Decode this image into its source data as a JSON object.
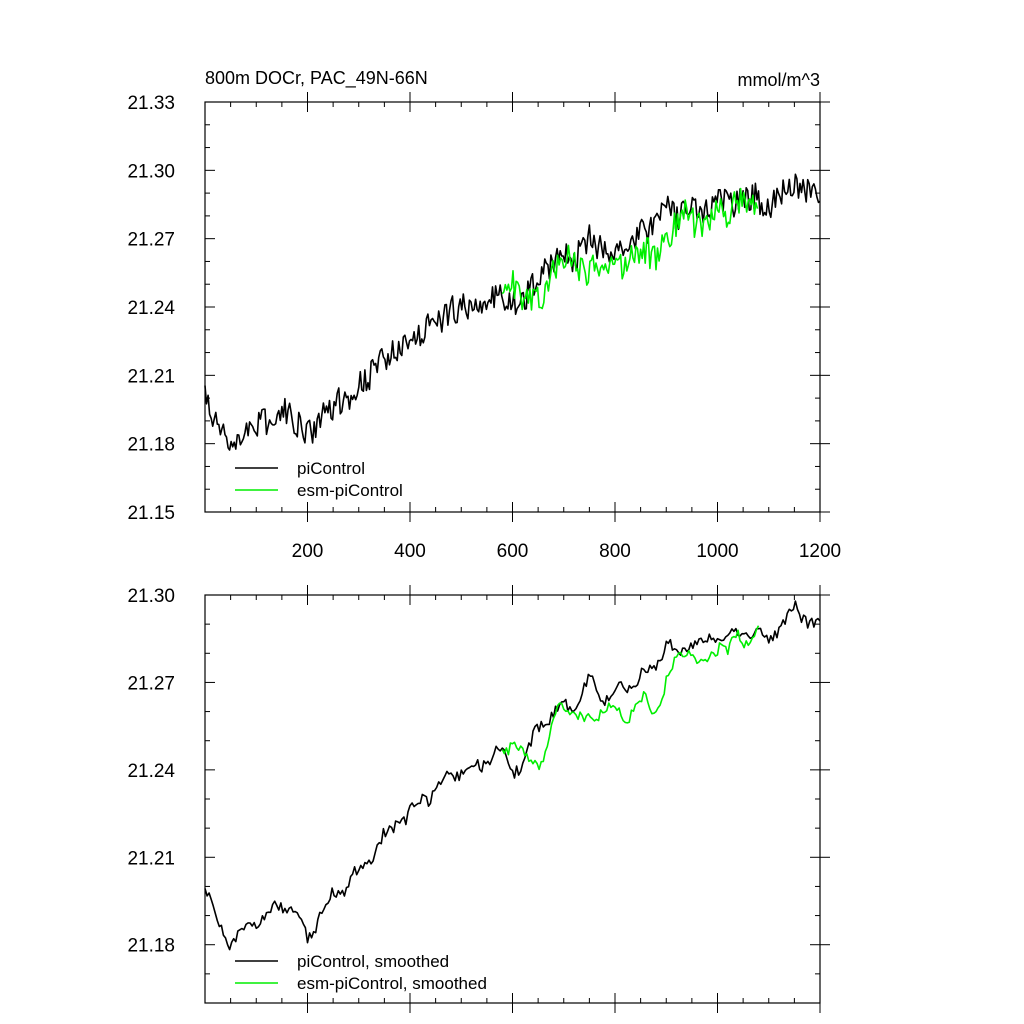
{
  "chart_data": [
    {
      "type": "line",
      "title": "800m DOCr, PAC_49N-66N",
      "units": "mmol/m^3",
      "xlim": [
        0,
        1200
      ],
      "ylim": [
        21.15,
        21.33
      ],
      "xticks": [
        200,
        400,
        600,
        800,
        1000,
        1200
      ],
      "xtick_labels": [
        "200",
        "400",
        "600",
        "800",
        "1000",
        "1200"
      ],
      "yticks": [
        21.15,
        21.18,
        21.21,
        21.24,
        21.27,
        21.3,
        21.33
      ],
      "ytick_labels": [
        "21.15",
        "21.18",
        "21.21",
        "21.24",
        "21.27",
        "21.30",
        "21.33"
      ],
      "legend_position": "bottom-left",
      "series": [
        {
          "name": "piControl",
          "color": "#000000",
          "x": [
            0,
            25,
            50,
            75,
            100,
            125,
            150,
            175,
            200,
            225,
            250,
            275,
            300,
            325,
            350,
            375,
            400,
            425,
            450,
            475,
            500,
            525,
            550,
            575,
            600,
            625,
            650,
            675,
            700,
            725,
            750,
            775,
            800,
            825,
            850,
            875,
            900,
            925,
            950,
            975,
            1000,
            1025,
            1050,
            1075,
            1100,
            1125,
            1150,
            1175,
            1200
          ],
          "values": [
            21.2,
            21.188,
            21.18,
            21.185,
            21.188,
            21.19,
            21.195,
            21.19,
            21.183,
            21.19,
            21.197,
            21.2,
            21.205,
            21.21,
            21.217,
            21.222,
            21.225,
            21.23,
            21.233,
            21.238,
            21.24,
            21.24,
            21.243,
            21.247,
            21.24,
            21.243,
            21.255,
            21.258,
            21.262,
            21.262,
            21.27,
            21.265,
            21.267,
            21.268,
            21.272,
            21.275,
            21.283,
            21.28,
            21.284,
            21.282,
            21.287,
            21.285,
            21.287,
            21.288,
            21.285,
            21.29,
            21.295,
            21.292,
            21.29
          ]
        },
        {
          "name": "esm-piControl",
          "color": "#00ee00",
          "x": [
            580,
            600,
            620,
            640,
            660,
            680,
            700,
            720,
            740,
            760,
            780,
            800,
            820,
            840,
            860,
            880,
            900,
            920,
            940,
            960,
            980,
            1000,
            1020,
            1040,
            1060,
            1080
          ],
          "values": [
            21.245,
            21.25,
            21.245,
            21.242,
            21.243,
            21.258,
            21.262,
            21.26,
            21.255,
            21.258,
            21.262,
            21.26,
            21.258,
            21.262,
            21.265,
            21.26,
            21.27,
            21.277,
            21.282,
            21.275,
            21.278,
            21.283,
            21.28,
            21.288,
            21.283,
            21.286
          ]
        }
      ]
    },
    {
      "type": "line",
      "xlim": [
        0,
        1200
      ],
      "ylim": [
        21.16,
        21.3
      ],
      "xticks": [
        200,
        400,
        600,
        800,
        1000,
        1200
      ],
      "yticks": [
        21.18,
        21.21,
        21.24,
        21.27,
        21.3
      ],
      "ytick_labels": [
        "21.18",
        "21.21",
        "21.24",
        "21.27",
        "21.30"
      ],
      "legend_position": "bottom-left",
      "series": [
        {
          "name": "piControl, smoothed",
          "color": "#000000",
          "x": [
            0,
            25,
            50,
            75,
            100,
            125,
            150,
            175,
            200,
            225,
            250,
            275,
            300,
            325,
            350,
            375,
            400,
            425,
            450,
            475,
            500,
            525,
            550,
            575,
            600,
            625,
            650,
            675,
            700,
            725,
            750,
            775,
            800,
            825,
            850,
            875,
            900,
            925,
            950,
            975,
            1000,
            1025,
            1050,
            1075,
            1100,
            1125,
            1150,
            1175,
            1200
          ],
          "values": [
            21.2,
            21.188,
            21.18,
            21.185,
            21.188,
            21.19,
            21.195,
            21.19,
            21.183,
            21.19,
            21.197,
            21.2,
            21.205,
            21.21,
            21.217,
            21.222,
            21.225,
            21.23,
            21.233,
            21.238,
            21.24,
            21.24,
            21.243,
            21.247,
            21.24,
            21.243,
            21.255,
            21.258,
            21.262,
            21.262,
            21.27,
            21.265,
            21.267,
            21.268,
            21.272,
            21.275,
            21.283,
            21.28,
            21.284,
            21.282,
            21.287,
            21.285,
            21.287,
            21.288,
            21.285,
            21.29,
            21.295,
            21.292,
            21.29
          ]
        },
        {
          "name": "esm-piControl, smoothed",
          "color": "#00ee00",
          "x": [
            580,
            600,
            620,
            640,
            660,
            680,
            700,
            720,
            740,
            760,
            780,
            800,
            820,
            840,
            860,
            880,
            900,
            920,
            940,
            960,
            980,
            1000,
            1020,
            1040,
            1060,
            1080
          ],
          "values": [
            21.245,
            21.25,
            21.245,
            21.242,
            21.243,
            21.258,
            21.262,
            21.26,
            21.255,
            21.258,
            21.262,
            21.26,
            21.258,
            21.262,
            21.265,
            21.26,
            21.27,
            21.277,
            21.282,
            21.275,
            21.278,
            21.283,
            21.28,
            21.288,
            21.283,
            21.286
          ]
        }
      ]
    }
  ]
}
